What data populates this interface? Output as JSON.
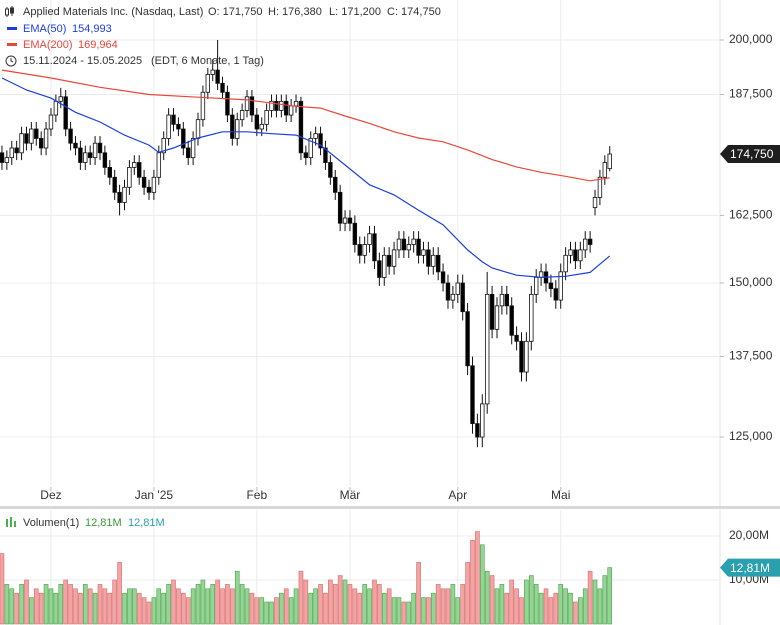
{
  "chart_data": [
    {
      "type": "candlestick",
      "title": "Applied Materials Inc. (Nasdaq, Last)",
      "ohlc_labels": [
        "O: 171,750",
        "H: 176,380",
        "L: 171,200",
        "C: 174,750"
      ],
      "date_range": "15.11.2024 - 15.05.2025",
      "date_note": "(EDT, 6 Monate, 1 Tag)",
      "last_label": "174,750",
      "up_color": "#ffffff",
      "down_color": "#000000",
      "log_scale": true,
      "grid": true,
      "xlim": [
        -0.4,
        146.5
      ],
      "xticks": [
        {
          "value": 10,
          "label": "Dez"
        },
        {
          "value": 31,
          "label": "Jan '25"
        },
        {
          "value": 52,
          "label": "Feb"
        },
        {
          "value": 71,
          "label": "Mär"
        },
        {
          "value": 93,
          "label": "Apr"
        },
        {
          "value": 114,
          "label": "Mai"
        }
      ],
      "ylim": [
        118.1,
        209.7
      ],
      "yticks": [
        {
          "value": 125,
          "label": "125,000"
        },
        {
          "value": 137.5,
          "label": "137,500"
        },
        {
          "value": 150,
          "label": "150,000"
        },
        {
          "value": 162.5,
          "label": "162,500"
        },
        {
          "value": 187.5,
          "label": "187,500"
        },
        {
          "value": 200,
          "label": "200,000"
        }
      ],
      "open": [
        175,
        173,
        174,
        176,
        175,
        179,
        177,
        180,
        178,
        176,
        180,
        183,
        186,
        187,
        180,
        177,
        176,
        173,
        175,
        174,
        177,
        175,
        172,
        170,
        167,
        165,
        168,
        172,
        173,
        170,
        168,
        167,
        170,
        175,
        178,
        183,
        181,
        180,
        176,
        174,
        178,
        182,
        188,
        192,
        193,
        190,
        188,
        183,
        178,
        182,
        184,
        187,
        183,
        180,
        181,
        184,
        186,
        184,
        186,
        183,
        185,
        186,
        175,
        174,
        178,
        179,
        176,
        173,
        170,
        167,
        161,
        162,
        161,
        157,
        155,
        157,
        159,
        154,
        151,
        155,
        153,
        156,
        158,
        156,
        157,
        158,
        155,
        156,
        153,
        155,
        152,
        150,
        147,
        148,
        150,
        145,
        136,
        127,
        125,
        130,
        148,
        142,
        146,
        148,
        146,
        141,
        140,
        135,
        140,
        148,
        151,
        152,
        150,
        149,
        147,
        152,
        155,
        156,
        154,
        156,
        158,
        164,
        166,
        170,
        171.75
      ],
      "high": [
        176.5,
        175.5,
        177.5,
        177.5,
        180.5,
        180.5,
        181.5,
        181.5,
        179.5,
        181.5,
        184.5,
        187.5,
        189,
        188.5,
        181.5,
        178.5,
        177.5,
        176.5,
        176.5,
        178.5,
        178.5,
        176.5,
        173.5,
        171.5,
        168.5,
        169.5,
        173.5,
        174.5,
        174.5,
        171.5,
        169.5,
        171.5,
        176.5,
        179.5,
        184.5,
        184.5,
        182.5,
        181.5,
        177.5,
        179.5,
        183.5,
        189.5,
        193.5,
        195.5,
        200,
        191.5,
        189.5,
        184.5,
        183.5,
        185.5,
        188.5,
        188.5,
        184.5,
        182.5,
        185.5,
        187.5,
        187.5,
        187.5,
        187.5,
        186.5,
        187.5,
        187,
        176.5,
        179.5,
        180.5,
        180.5,
        177.5,
        174.5,
        171.5,
        168.5,
        163.5,
        163.5,
        162.5,
        158.5,
        158.5,
        160.5,
        160.5,
        155.5,
        156.5,
        156.5,
        157.5,
        159.5,
        159.5,
        158.5,
        159.5,
        159.5,
        157.5,
        157.5,
        156.5,
        156.5,
        153.5,
        151.5,
        149.5,
        151.5,
        151.5,
        146.5,
        137.5,
        128.5,
        131.5,
        152,
        149.5,
        147.5,
        149.5,
        149.5,
        147.5,
        142.5,
        141.5,
        141.5,
        149.5,
        152.5,
        153.5,
        153.5,
        151.5,
        150.5,
        153.5,
        156.5,
        157.5,
        157.5,
        157.5,
        159.5,
        159.5,
        167.5,
        171.5,
        174.5,
        176.38
      ],
      "low": [
        171.5,
        171.5,
        172.5,
        173.5,
        173.5,
        175.5,
        175.5,
        176.5,
        174.5,
        174.5,
        178.5,
        181.5,
        184.5,
        178.5,
        175.5,
        174.5,
        171.5,
        171.5,
        172.5,
        172.5,
        173.5,
        170.5,
        168.5,
        165.5,
        162.5,
        163.5,
        166.5,
        170.5,
        168.5,
        166.5,
        165.5,
        165.5,
        168.5,
        173.5,
        176.5,
        179.5,
        178.5,
        174.5,
        172.5,
        172.5,
        176.5,
        180.5,
        186.5,
        190.5,
        188.5,
        186.5,
        181.5,
        176.5,
        176.5,
        180.5,
        182.5,
        181.5,
        178.5,
        178.5,
        179.5,
        182.5,
        182.5,
        182.5,
        181.5,
        181.5,
        183.5,
        173.5,
        172.5,
        172.5,
        176.5,
        174.5,
        171.5,
        168.5,
        165.5,
        159.5,
        159.5,
        159.5,
        155.5,
        153.5,
        153.5,
        155.5,
        152.5,
        149.5,
        149.5,
        151.5,
        151.5,
        154.5,
        154.5,
        154.5,
        155.5,
        153.5,
        153.5,
        151.5,
        151.5,
        150.5,
        148.5,
        145.5,
        145.5,
        146.5,
        143.5,
        134.5,
        125.5,
        123.5,
        123.5,
        128.5,
        140.5,
        140.5,
        144.5,
        144.5,
        139.5,
        138.5,
        133.5,
        133.5,
        138.5,
        146.5,
        149.5,
        148.5,
        147.5,
        145.5,
        145.5,
        150.5,
        153.5,
        152.5,
        152.5,
        154.5,
        155.5,
        162.5,
        164.5,
        168.5,
        171.2
      ],
      "close": [
        173,
        174,
        176,
        175,
        179,
        177,
        180,
        178,
        176,
        180,
        183,
        186,
        187,
        180,
        177,
        176,
        173,
        175,
        174,
        177,
        175,
        172,
        170,
        167,
        165,
        168,
        172,
        173,
        170,
        168,
        167,
        170,
        175,
        178,
        183,
        181,
        180,
        176,
        174,
        178,
        182,
        188,
        192,
        193,
        190,
        188,
        183,
        178,
        182,
        184,
        187,
        183,
        180,
        181,
        184,
        186,
        184,
        186,
        183,
        185,
        186,
        175,
        174,
        178,
        179,
        176,
        173,
        170,
        167,
        161,
        162,
        161,
        157,
        155,
        157,
        159,
        154,
        151,
        155,
        153,
        156,
        158,
        156,
        157,
        158,
        155,
        156,
        153,
        155,
        152,
        150,
        147,
        148,
        150,
        145,
        136,
        127,
        125,
        130,
        148,
        142,
        146,
        148,
        146,
        141,
        140,
        135,
        140,
        148,
        151,
        152,
        150,
        149,
        147,
        152,
        155,
        156,
        154,
        156,
        158,
        157,
        166,
        170,
        173,
        174.75
      ],
      "series": [
        {
          "name": "EMA(50)",
          "color": "#1a3fe0",
          "last_label": "154,993",
          "x": [
            0,
            5,
            10,
            15,
            20,
            25,
            30,
            32,
            35,
            40,
            45,
            50,
            55,
            60,
            65,
            70,
            75,
            80,
            85,
            90,
            95,
            98,
            100,
            105,
            110,
            115,
            120,
            124
          ],
          "values": [
            191.2,
            188.5,
            186.7,
            183.6,
            181.5,
            178.7,
            176.6,
            175.1,
            176,
            178.1,
            179.4,
            179.4,
            179,
            178.7,
            176.6,
            172.5,
            168.5,
            166.5,
            163.5,
            160.7,
            156,
            153.8,
            152.7,
            151.4,
            151,
            151.2,
            151.9,
            154.9
          ]
        },
        {
          "name": "EMA(200)",
          "color": "#e8473a",
          "last_label": "169,964",
          "x": [
            0,
            10,
            20,
            30,
            40,
            50,
            60,
            65,
            70,
            75,
            80,
            85,
            90,
            95,
            100,
            105,
            110,
            115,
            120,
            124
          ],
          "values": [
            193,
            191.2,
            189.1,
            187.5,
            186.9,
            186.3,
            184.9,
            184.5,
            182.8,
            181.2,
            179.4,
            178.1,
            177.3,
            175.6,
            173.6,
            172.1,
            171,
            170.2,
            169.3,
            169.9
          ]
        }
      ]
    },
    {
      "type": "volume",
      "name": "Volumen(1)",
      "legend_labels": [
        "12,81M",
        "12,81M"
      ],
      "last_label": "12,81M",
      "up_color": "#93d693",
      "down_color": "#f3a3a3",
      "ylim": [
        0,
        25.9
      ],
      "yticks": [
        {
          "value": 10,
          "label": "10,00M"
        },
        {
          "value": 20,
          "label": "20,00M"
        }
      ],
      "values": [
        16,
        9,
        8,
        7,
        9,
        10,
        6,
        8,
        7,
        9,
        8,
        7,
        9,
        10,
        9,
        8,
        7,
        9,
        8,
        7,
        9,
        8,
        7,
        10,
        14,
        7,
        8,
        8,
        7,
        6,
        5,
        6,
        8,
        7,
        9,
        10,
        8,
        7,
        6,
        8,
        9,
        10,
        8,
        9,
        10,
        8,
        9,
        8,
        12,
        9,
        8,
        7,
        6,
        6,
        5,
        5,
        6,
        7,
        8,
        6,
        8,
        12,
        10,
        7,
        8,
        9,
        7,
        10,
        9,
        11,
        10,
        9,
        8,
        7,
        9,
        8,
        10,
        9,
        7,
        8,
        6,
        6,
        5,
        5,
        7,
        14,
        6,
        6,
        7,
        9,
        8,
        8,
        9,
        6,
        9,
        14,
        19,
        21,
        18,
        12,
        11,
        8,
        9,
        7,
        10,
        8,
        6,
        10,
        11,
        9,
        7,
        8,
        6,
        7,
        9,
        8,
        7,
        5,
        6,
        8,
        12,
        10,
        8,
        11,
        12.81
      ]
    }
  ]
}
